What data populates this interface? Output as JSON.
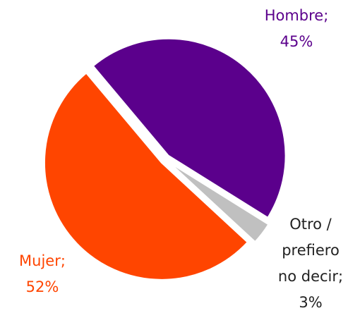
{
  "chart_data": {
    "type": "pie",
    "categories": [
      "Hombre;",
      "Otro / prefiero no decir;",
      "Mujer;"
    ],
    "values": [
      45,
      3,
      52
    ],
    "value_labels": [
      "45%",
      "3%",
      "52%"
    ],
    "colors": [
      "#5b008c",
      "#c0c0c0",
      "#ff4500"
    ],
    "start_angle": -40
  }
}
